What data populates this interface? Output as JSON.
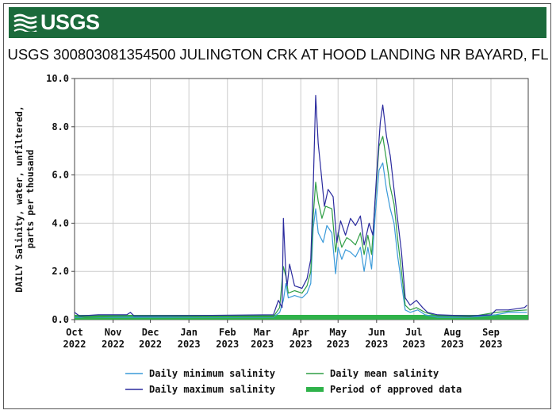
{
  "header": {
    "logo_text": "USGS",
    "logo_icon": "usgs-wave-icon",
    "brand_color": "#1b6a3b"
  },
  "title": "USGS 300803081354500 JULINGTON CRK AT HOOD LANDING NR BAYARD, FL",
  "chart_data": {
    "type": "line",
    "title": "USGS 300803081354500 JULINGTON CRK AT HOOD LANDING NR BAYARD, FL",
    "xlabel": "",
    "ylabel": "DAILY Salinity, water, unfiltered, parts per thousand",
    "ylabel_lines": [
      "DAILY Salinity, water, unfiltered,",
      "parts per thousand"
    ],
    "xlim": [
      "2022-10-01",
      "2023-09-30"
    ],
    "ylim": [
      0,
      10
    ],
    "yticks": [
      "0.0",
      "2.0",
      "4.0",
      "6.0",
      "8.0",
      "10.0"
    ],
    "xticks": [
      {
        "date": "2022-10-01",
        "month": "Oct",
        "year": "2022"
      },
      {
        "date": "2022-11-01",
        "month": "Nov",
        "year": "2022"
      },
      {
        "date": "2022-12-01",
        "month": "Dec",
        "year": "2022"
      },
      {
        "date": "2023-01-01",
        "month": "Jan",
        "year": "2023"
      },
      {
        "date": "2023-02-01",
        "month": "Feb",
        "year": "2023"
      },
      {
        "date": "2023-03-01",
        "month": "Mar",
        "year": "2023"
      },
      {
        "date": "2023-04-01",
        "month": "Apr",
        "year": "2023"
      },
      {
        "date": "2023-05-01",
        "month": "May",
        "year": "2023"
      },
      {
        "date": "2023-06-01",
        "month": "Jun",
        "year": "2023"
      },
      {
        "date": "2023-07-01",
        "month": "Jul",
        "year": "2023"
      },
      {
        "date": "2023-08-01",
        "month": "Aug",
        "year": "2023"
      },
      {
        "date": "2023-09-01",
        "month": "Sep",
        "year": "2023"
      }
    ],
    "grid": true,
    "legend_position": "bottom",
    "series": [
      {
        "name": "Daily minimum salinity",
        "color": "#3a9ad9",
        "points": [
          [
            "2022-10-01",
            0.1
          ],
          [
            "2022-10-05",
            0.1
          ],
          [
            "2022-11-15",
            0.1
          ],
          [
            "2023-01-15",
            0.1
          ],
          [
            "2023-03-10",
            0.1
          ],
          [
            "2023-03-15",
            0.3
          ],
          [
            "2023-03-18",
            0.8
          ],
          [
            "2023-03-20",
            1.5
          ],
          [
            "2023-03-22",
            0.9
          ],
          [
            "2023-03-27",
            1.0
          ],
          [
            "2023-04-02",
            0.9
          ],
          [
            "2023-04-06",
            1.1
          ],
          [
            "2023-04-09",
            1.5
          ],
          [
            "2023-04-11",
            3.8
          ],
          [
            "2023-04-13",
            4.6
          ],
          [
            "2023-04-15",
            3.6
          ],
          [
            "2023-04-19",
            3.2
          ],
          [
            "2023-04-22",
            3.9
          ],
          [
            "2023-04-26",
            3.6
          ],
          [
            "2023-04-29",
            1.9
          ],
          [
            "2023-05-01",
            3.0
          ],
          [
            "2023-05-04",
            2.5
          ],
          [
            "2023-05-07",
            2.9
          ],
          [
            "2023-05-11",
            2.8
          ],
          [
            "2023-05-15",
            2.6
          ],
          [
            "2023-05-19",
            3.0
          ],
          [
            "2023-05-22",
            2.0
          ],
          [
            "2023-05-25",
            3.0
          ],
          [
            "2023-05-28",
            2.1
          ],
          [
            "2023-05-31",
            4.4
          ],
          [
            "2023-06-03",
            6.2
          ],
          [
            "2023-06-06",
            6.5
          ],
          [
            "2023-06-09",
            5.4
          ],
          [
            "2023-06-12",
            4.6
          ],
          [
            "2023-06-15",
            4.0
          ],
          [
            "2023-06-18",
            2.6
          ],
          [
            "2023-06-21",
            1.5
          ],
          [
            "2023-06-24",
            0.4
          ],
          [
            "2023-06-28",
            0.3
          ],
          [
            "2023-07-04",
            0.4
          ],
          [
            "2023-07-10",
            0.2
          ],
          [
            "2023-07-20",
            0.1
          ],
          [
            "2023-08-15",
            0.1
          ],
          [
            "2023-09-05",
            0.2
          ],
          [
            "2023-09-15",
            0.3
          ],
          [
            "2023-09-30",
            0.3
          ]
        ]
      },
      {
        "name": "Daily maximum salinity",
        "color": "#2a2a9e",
        "points": [
          [
            "2022-10-01",
            0.3
          ],
          [
            "2022-10-05",
            0.15
          ],
          [
            "2022-10-20",
            0.2
          ],
          [
            "2022-11-12",
            0.2
          ],
          [
            "2022-11-15",
            0.3
          ],
          [
            "2022-11-18",
            0.15
          ],
          [
            "2023-03-10",
            0.2
          ],
          [
            "2023-03-14",
            0.8
          ],
          [
            "2023-03-17",
            0.5
          ],
          [
            "2023-03-18",
            4.2
          ],
          [
            "2023-03-20",
            1.9
          ],
          [
            "2023-03-21",
            1.4
          ],
          [
            "2023-03-23",
            2.3
          ],
          [
            "2023-03-27",
            1.4
          ],
          [
            "2023-04-02",
            1.3
          ],
          [
            "2023-04-06",
            1.7
          ],
          [
            "2023-04-09",
            2.5
          ],
          [
            "2023-04-11",
            5.5
          ],
          [
            "2023-04-13",
            9.3
          ],
          [
            "2023-04-15",
            7.3
          ],
          [
            "2023-04-17",
            6.3
          ],
          [
            "2023-04-20",
            4.7
          ],
          [
            "2023-04-23",
            5.4
          ],
          [
            "2023-04-27",
            5.1
          ],
          [
            "2023-04-30",
            3.2
          ],
          [
            "2023-05-03",
            4.1
          ],
          [
            "2023-05-07",
            3.5
          ],
          [
            "2023-05-11",
            4.2
          ],
          [
            "2023-05-15",
            3.9
          ],
          [
            "2023-05-19",
            4.3
          ],
          [
            "2023-05-22",
            3.1
          ],
          [
            "2023-05-26",
            4.0
          ],
          [
            "2023-05-29",
            3.5
          ],
          [
            "2023-06-01",
            6.0
          ],
          [
            "2023-06-04",
            8.2
          ],
          [
            "2023-06-06",
            8.9
          ],
          [
            "2023-06-09",
            7.6
          ],
          [
            "2023-06-12",
            6.8
          ],
          [
            "2023-06-15",
            5.4
          ],
          [
            "2023-06-18",
            4.1
          ],
          [
            "2023-06-21",
            2.8
          ],
          [
            "2023-06-24",
            0.9
          ],
          [
            "2023-06-28",
            0.6
          ],
          [
            "2023-07-03",
            0.8
          ],
          [
            "2023-07-08",
            0.5
          ],
          [
            "2023-07-12",
            0.3
          ],
          [
            "2023-07-20",
            0.2
          ],
          [
            "2023-08-15",
            0.15
          ],
          [
            "2023-09-01",
            0.2
          ],
          [
            "2023-09-05",
            0.4
          ],
          [
            "2023-09-15",
            0.4
          ],
          [
            "2023-09-28",
            0.5
          ],
          [
            "2023-09-30",
            0.6
          ]
        ]
      },
      {
        "name": "Daily mean salinity",
        "color": "#2f9e45",
        "points": [
          [
            "2022-10-01",
            0.15
          ],
          [
            "2022-10-10",
            0.1
          ],
          [
            "2022-11-15",
            0.15
          ],
          [
            "2023-01-15",
            0.12
          ],
          [
            "2023-03-10",
            0.12
          ],
          [
            "2023-03-15",
            0.5
          ],
          [
            "2023-03-18",
            2.2
          ],
          [
            "2023-03-20",
            1.8
          ],
          [
            "2023-03-22",
            1.1
          ],
          [
            "2023-03-27",
            1.2
          ],
          [
            "2023-04-02",
            1.1
          ],
          [
            "2023-04-06",
            1.4
          ],
          [
            "2023-04-09",
            2.0
          ],
          [
            "2023-04-11",
            4.3
          ],
          [
            "2023-04-13",
            5.7
          ],
          [
            "2023-04-15",
            4.9
          ],
          [
            "2023-04-18",
            4.2
          ],
          [
            "2023-04-21",
            4.7
          ],
          [
            "2023-04-26",
            4.6
          ],
          [
            "2023-04-29",
            2.8
          ],
          [
            "2023-05-01",
            3.6
          ],
          [
            "2023-05-04",
            3.0
          ],
          [
            "2023-05-08",
            3.4
          ],
          [
            "2023-05-11",
            3.3
          ],
          [
            "2023-05-15",
            3.1
          ],
          [
            "2023-05-19",
            3.6
          ],
          [
            "2023-05-22",
            2.7
          ],
          [
            "2023-05-25",
            3.5
          ],
          [
            "2023-05-28",
            2.7
          ],
          [
            "2023-05-31",
            5.0
          ],
          [
            "2023-06-03",
            7.2
          ],
          [
            "2023-06-06",
            7.6
          ],
          [
            "2023-06-09",
            6.6
          ],
          [
            "2023-06-12",
            5.5
          ],
          [
            "2023-06-15",
            4.8
          ],
          [
            "2023-06-18",
            3.3
          ],
          [
            "2023-06-21",
            2.0
          ],
          [
            "2023-06-24",
            0.6
          ],
          [
            "2023-06-28",
            0.4
          ],
          [
            "2023-07-03",
            0.5
          ],
          [
            "2023-07-10",
            0.3
          ],
          [
            "2023-07-20",
            0.15
          ],
          [
            "2023-08-15",
            0.12
          ],
          [
            "2023-09-05",
            0.3
          ],
          [
            "2023-09-15",
            0.35
          ],
          [
            "2023-09-30",
            0.4
          ]
        ]
      }
    ],
    "approved_period": {
      "name": "Period of approved data",
      "color": "#2fb24a",
      "start": "2022-10-01",
      "end": "2023-09-30"
    },
    "legend": [
      {
        "label": "Daily minimum salinity",
        "color": "#3a9ad9",
        "kind": "line"
      },
      {
        "label": "Daily mean salinity",
        "color": "#2f9e45",
        "kind": "line"
      },
      {
        "label": "Daily maximum salinity",
        "color": "#2a2a9e",
        "kind": "line"
      },
      {
        "label": "Period of approved data",
        "color": "#2fb24a",
        "kind": "bar"
      }
    ]
  }
}
